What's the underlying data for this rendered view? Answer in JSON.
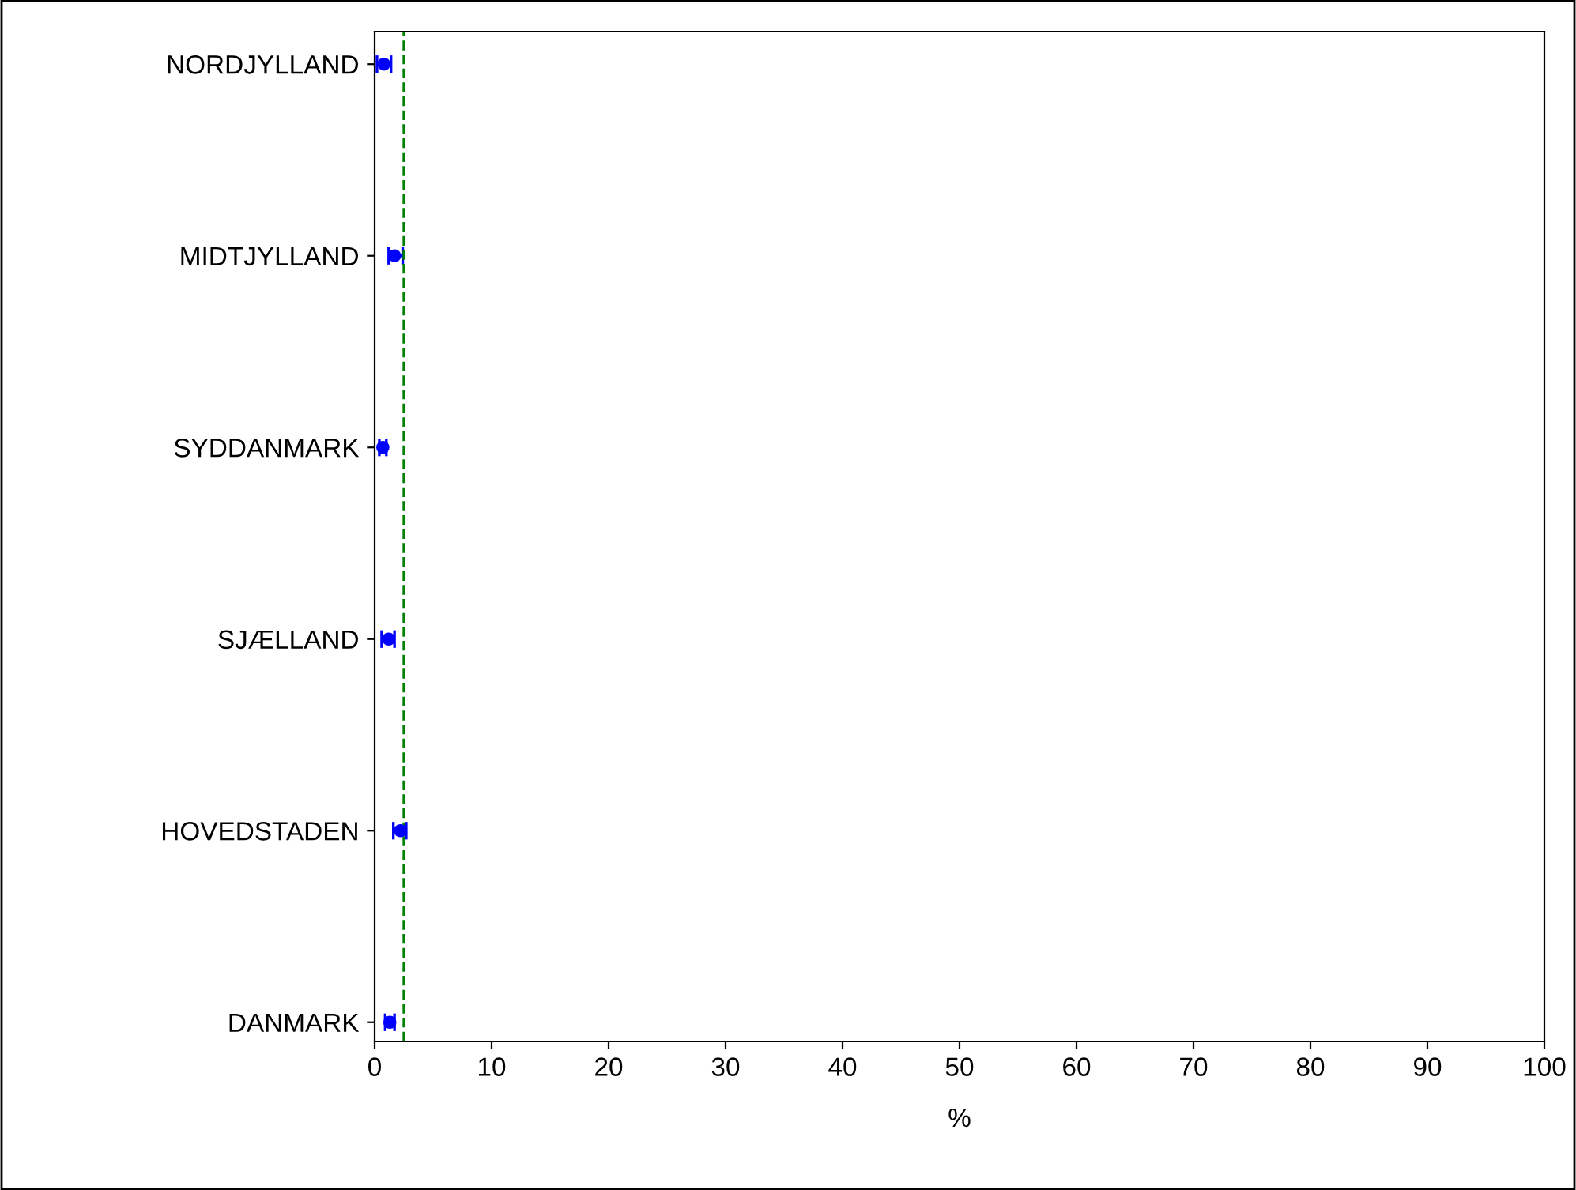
{
  "chart_data": {
    "type": "scatter",
    "orientation": "horizontal",
    "categories": [
      "NORDJYLLAND",
      "MIDTJYLLAND",
      "SYDDANMARK",
      "SJÆLLAND",
      "HOVEDSTADEN",
      "DANMARK"
    ],
    "series": [
      {
        "color": "#0000ff",
        "values": [
          0.8,
          1.7,
          0.7,
          1.2,
          2.2,
          1.3
        ],
        "errors": [
          [
            0.2,
            1.4
          ],
          [
            1.2,
            2.4
          ],
          [
            0.4,
            1.0
          ],
          [
            0.6,
            1.7
          ],
          [
            1.6,
            2.7
          ],
          [
            0.9,
            1.7
          ]
        ]
      }
    ],
    "xlabel": "%",
    "xlim": [
      0,
      100
    ],
    "xticks": [
      0,
      10,
      20,
      30,
      40,
      50,
      60,
      70,
      80,
      90,
      100
    ],
    "ref_lines": [
      {
        "axis": "x",
        "value": 2.5,
        "color": "#008000",
        "line_style": "dashed"
      }
    ],
    "marker": "circle",
    "grid": false
  }
}
